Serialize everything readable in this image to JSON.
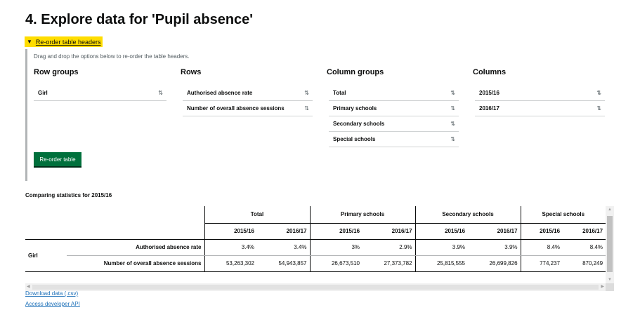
{
  "page": {
    "title": "4. Explore data for 'Pupil absence'"
  },
  "reorder": {
    "toggle_label": "Re-order table headers",
    "hint": "Drag and drop the options below to re-order the table headers.",
    "button_label": "Re-order table",
    "sort_glyph": "⇅",
    "groups": [
      {
        "heading": "Row groups",
        "items": [
          "Girl"
        ]
      },
      {
        "heading": "Rows",
        "items": [
          "Authorised absence rate",
          "Number of overall absence sessions"
        ]
      },
      {
        "heading": "Column groups",
        "items": [
          "Total",
          "Primary schools",
          "Secondary schools",
          "Special schools"
        ]
      },
      {
        "heading": "Columns",
        "items": [
          "2015/16",
          "2016/17"
        ]
      }
    ]
  },
  "table": {
    "caption": "Comparing statistics for 2015/16",
    "column_groups": [
      "Total",
      "Primary schools",
      "Secondary schools",
      "Special schools"
    ],
    "columns": [
      "2015/16",
      "2016/17"
    ],
    "row_group": "Girl",
    "rows": [
      {
        "label": "Authorised absence rate",
        "values": [
          "3.4%",
          "3.4%",
          "3%",
          "2.9%",
          "3.9%",
          "3.9%",
          "8.4%",
          "8.4%"
        ]
      },
      {
        "label": "Number of overall absence sessions",
        "values": [
          "53,263,302",
          "54,943,857",
          "26,673,510",
          "27,373,782",
          "25,815,555",
          "26,699,826",
          "774,237",
          "870,249"
        ]
      }
    ]
  },
  "links": {
    "download": "Download data (.csv)",
    "api": "Access developer API"
  },
  "colors": {
    "toggle_bg": "#ffdd00",
    "button_bg": "#00703c",
    "link": "#1d70b8"
  }
}
